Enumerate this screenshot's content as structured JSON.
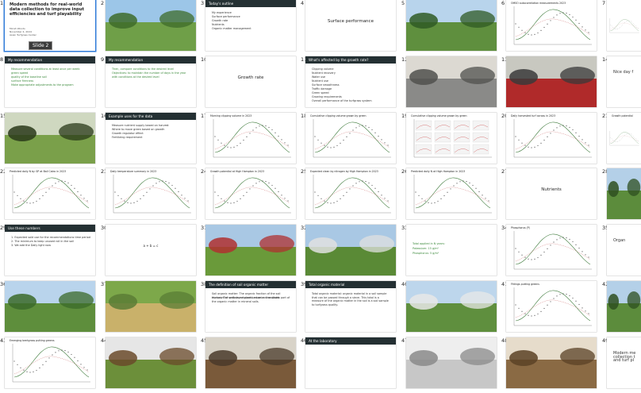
{
  "slides": [
    {
      "n": "1",
      "kind": "title",
      "title": "Modern methods for real-world data collection to improve input efficiencies and turf playability",
      "meta": [
        "Micah Woods",
        "November 4, 2024",
        "Asian Turfgrass Center"
      ],
      "tooltip": "Slide 2"
    },
    {
      "n": "2",
      "kind": "photo",
      "scene": "turf-people"
    },
    {
      "n": "3",
      "kind": "header-bullets",
      "header": "Today's outline",
      "bullets": [
        "My experience",
        "Surface performance",
        "Growth rate",
        "Nutrients",
        "Organic matter management"
      ]
    },
    {
      "n": "4",
      "kind": "center",
      "text": "Surface performance"
    },
    {
      "n": "5",
      "kind": "photo",
      "scene": "green-kneel"
    },
    {
      "n": "6",
      "kind": "chart",
      "title": "OMSO autocorrelation measurements 2023"
    },
    {
      "n": "7",
      "kind": "chart-partial",
      "title": ""
    },
    {
      "n": "8",
      "kind": "header-bullets",
      "header": "My recommendation",
      "green": true,
      "bullets": [
        "Measure several conditions at least once per week:",
        "green speed",
        "quality of the baseline soil",
        "surface firmness",
        "Make appropriate adjustments to the program"
      ]
    },
    {
      "n": "9",
      "kind": "header-bullets",
      "header": "My recommendation",
      "green": true,
      "bullets": [
        "Then, compare conditions to the desired level",
        "Objectives: to maintain the number of days in the year with conditions at the desired level"
      ]
    },
    {
      "n": "10",
      "kind": "center",
      "text": "Growth rate"
    },
    {
      "n": "11",
      "kind": "header-bullets",
      "header": "What's affected by the growth rate?",
      "bullets": [
        "Clipping volume",
        "Nutrient recovery",
        "Water use",
        "Nutrient use",
        "Surface smoothness",
        "Traffic damage",
        "Green speed",
        "Growing requirements",
        "Overall performance of the turfgrass system"
      ]
    },
    {
      "n": "12",
      "kind": "photo",
      "scene": "bucket"
    },
    {
      "n": "13",
      "kind": "photo",
      "scene": "mower"
    },
    {
      "n": "14",
      "kind": "partial-text",
      "title": "Nice day f"
    },
    {
      "n": "15",
      "kind": "photo",
      "scene": "clip-phone"
    },
    {
      "n": "16",
      "kind": "header-bullets",
      "header": "Example uses for the data",
      "bullets": [
        "Measure nutrient supply based on harvest",
        "Where to move green based on growth",
        "Growth regulator effect",
        "Fertilizing requirement"
      ]
    },
    {
      "n": "17",
      "kind": "chart",
      "title": "Morning clipping volume in 2023"
    },
    {
      "n": "18",
      "kind": "chart",
      "title": "Cumulative clipping volume grown by green"
    },
    {
      "n": "19",
      "kind": "chart-grid",
      "title": "Cumulative clipping volume grown by green"
    },
    {
      "n": "20",
      "kind": "chart",
      "title": "Daily harvested turf across in 2023"
    },
    {
      "n": "21",
      "kind": "chart-partial",
      "title": "Growth potential"
    },
    {
      "n": "22",
      "kind": "chart",
      "title": "Predicted daily N by GP at Ball Catro in 2023"
    },
    {
      "n": "23",
      "kind": "chart",
      "title": "Daily temperature summary in 2023"
    },
    {
      "n": "24",
      "kind": "chart",
      "title": "Growth potential at High Hampton in 2023"
    },
    {
      "n": "25",
      "kind": "chart",
      "title": "Expected clean by nitrogen by High Hampton in 2023"
    },
    {
      "n": "26",
      "kind": "chart",
      "title": "Predicted daily N at High Hampton in 2023"
    },
    {
      "n": "27",
      "kind": "center",
      "text": "Nutrients"
    },
    {
      "n": "28",
      "kind": "photo",
      "scene": "course-edge"
    },
    {
      "n": "29",
      "kind": "header-bullets",
      "header": "Use these numbers",
      "bullets": [
        "1. Expected sold use for the recommendations time period",
        "2. The minimum to keep unused roll in the soil",
        "3. We add the Daily light now"
      ]
    },
    {
      "n": "30",
      "kind": "formula",
      "text": "a + b = c"
    },
    {
      "n": "31",
      "kind": "photo",
      "scene": "mow-green"
    },
    {
      "n": "32",
      "kind": "photo",
      "scene": "sprinkler"
    },
    {
      "n": "33",
      "kind": "text-green",
      "lines": [
        "Total applied in N years:",
        "Potassium: 15 g/m²",
        "Phosphorus: 5 g/m²"
      ]
    },
    {
      "n": "34",
      "kind": "chart",
      "title": "Phosphorus (P)"
    },
    {
      "n": "35",
      "kind": "partial-text",
      "title": "Organ"
    },
    {
      "n": "36",
      "kind": "photo",
      "scene": "fairway"
    },
    {
      "n": "37",
      "kind": "photo",
      "scene": "cup"
    },
    {
      "n": "38",
      "kind": "header-bullets",
      "header": "The definition of soil organic matter",
      "bullets": [
        "Soil organic matter: The organic fraction of the soil exclusive of undecayed plant and animal residues.",
        "Humus: The well-decomposed, more or less stable part of the organic matter in mineral soils."
      ]
    },
    {
      "n": "39",
      "kind": "header-bullets",
      "header": "Total organic material",
      "bullets": [
        "Total organic material: organic material in a soil sample that can be passed through a sieve. This total is a measure of the organic matter in the soil is a soil sample to turfgrass quality."
      ]
    },
    {
      "n": "40",
      "kind": "photo",
      "scene": "carts"
    },
    {
      "n": "41",
      "kind": "chart",
      "title": "Fittings putting greens"
    },
    {
      "n": "42",
      "kind": "photo",
      "scene": "course-edge"
    },
    {
      "n": "43",
      "kind": "chart",
      "title": "Emerging bentgrass putting greens"
    },
    {
      "n": "44",
      "kind": "photo",
      "scene": "turf-core"
    },
    {
      "n": "45",
      "kind": "photo",
      "scene": "soil"
    },
    {
      "n": "46",
      "kind": "header-bullets",
      "header": "At the laboratory",
      "bullets": []
    },
    {
      "n": "47",
      "kind": "photo",
      "scene": "lab"
    },
    {
      "n": "48",
      "kind": "photo",
      "scene": "soil-pile"
    },
    {
      "n": "49",
      "kind": "partial-text",
      "title": "Modern me collection t and turf pl"
    }
  ]
}
